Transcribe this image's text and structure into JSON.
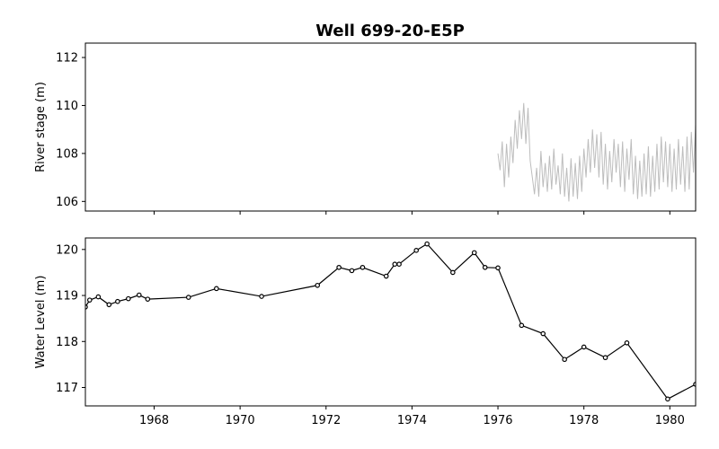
{
  "title": "Well 699-20-E5P",
  "chart_data": [
    {
      "type": "line",
      "panel": "top",
      "ylabel": "River stage (m)",
      "xlabel": "",
      "xlim": [
        1966.4,
        1980.6
      ],
      "ylim": [
        105.6,
        112.6
      ],
      "yticks": [
        106,
        108,
        110,
        112
      ],
      "xticks": [
        1968,
        1970,
        1972,
        1974,
        1976,
        1978,
        1980
      ],
      "show_xtick_labels": false,
      "color": "#bdbdbd",
      "series": [
        {
          "x_range": [
            1976.0,
            1980.6
          ],
          "description_points": [
            [
              1976.0,
              108.0
            ],
            [
              1976.05,
              107.3
            ],
            [
              1976.1,
              108.5
            ],
            [
              1976.15,
              106.6
            ],
            [
              1976.2,
              108.4
            ],
            [
              1976.25,
              107.0
            ],
            [
              1976.3,
              108.7
            ],
            [
              1976.35,
              107.6
            ],
            [
              1976.4,
              109.4
            ],
            [
              1976.45,
              108.2
            ],
            [
              1976.5,
              109.8
            ],
            [
              1976.55,
              108.6
            ],
            [
              1976.6,
              110.1
            ],
            [
              1976.65,
              108.4
            ],
            [
              1976.7,
              109.9
            ],
            [
              1976.75,
              107.7
            ],
            [
              1976.8,
              107.0
            ],
            [
              1976.85,
              106.3
            ],
            [
              1976.9,
              107.4
            ],
            [
              1976.95,
              106.2
            ],
            [
              1977.0,
              108.1
            ],
            [
              1977.05,
              106.6
            ],
            [
              1977.1,
              107.6
            ],
            [
              1977.15,
              106.4
            ],
            [
              1977.2,
              107.9
            ],
            [
              1977.25,
              106.5
            ],
            [
              1977.3,
              108.2
            ],
            [
              1977.35,
              106.7
            ],
            [
              1977.4,
              107.5
            ],
            [
              1977.45,
              106.3
            ],
            [
              1977.5,
              108.0
            ],
            [
              1977.55,
              106.2
            ],
            [
              1977.6,
              107.4
            ],
            [
              1977.65,
              106.0
            ],
            [
              1977.7,
              107.8
            ],
            [
              1977.75,
              106.2
            ],
            [
              1977.8,
              107.6
            ],
            [
              1977.85,
              106.1
            ],
            [
              1977.9,
              107.9
            ],
            [
              1977.95,
              106.4
            ],
            [
              1978.0,
              108.2
            ],
            [
              1978.05,
              107.0
            ],
            [
              1978.1,
              108.6
            ],
            [
              1978.15,
              107.2
            ],
            [
              1978.2,
              109.0
            ],
            [
              1978.25,
              107.4
            ],
            [
              1978.3,
              108.8
            ],
            [
              1978.35,
              107.0
            ],
            [
              1978.4,
              108.9
            ],
            [
              1978.45,
              106.7
            ],
            [
              1978.5,
              108.4
            ],
            [
              1978.55,
              106.5
            ],
            [
              1978.6,
              108.1
            ],
            [
              1978.65,
              106.8
            ],
            [
              1978.7,
              108.6
            ],
            [
              1978.75,
              107.2
            ],
            [
              1978.8,
              108.4
            ],
            [
              1978.85,
              106.6
            ],
            [
              1978.9,
              108.5
            ],
            [
              1978.95,
              106.4
            ],
            [
              1979.0,
              108.2
            ],
            [
              1979.05,
              106.9
            ],
            [
              1979.1,
              108.6
            ],
            [
              1979.15,
              106.3
            ],
            [
              1979.2,
              107.9
            ],
            [
              1979.25,
              106.1
            ],
            [
              1979.3,
              107.7
            ],
            [
              1979.35,
              106.2
            ],
            [
              1979.4,
              108.0
            ],
            [
              1979.45,
              106.3
            ],
            [
              1979.5,
              108.3
            ],
            [
              1979.55,
              106.2
            ],
            [
              1979.6,
              107.9
            ],
            [
              1979.65,
              106.4
            ],
            [
              1979.7,
              108.4
            ],
            [
              1979.75,
              106.5
            ],
            [
              1979.8,
              108.7
            ],
            [
              1979.85,
              106.8
            ],
            [
              1979.9,
              108.5
            ],
            [
              1979.95,
              106.6
            ],
            [
              1980.0,
              108.4
            ],
            [
              1980.05,
              106.4
            ],
            [
              1980.1,
              108.2
            ],
            [
              1980.15,
              106.5
            ],
            [
              1980.2,
              108.6
            ],
            [
              1980.25,
              106.7
            ],
            [
              1980.3,
              108.3
            ],
            [
              1980.35,
              106.4
            ],
            [
              1980.4,
              108.7
            ],
            [
              1980.45,
              106.5
            ],
            [
              1980.5,
              108.9
            ],
            [
              1980.55,
              107.2
            ],
            [
              1980.6,
              109.2
            ]
          ]
        }
      ]
    },
    {
      "type": "line",
      "panel": "bottom",
      "ylabel": "Water Level (m)",
      "xlabel": "",
      "xlim": [
        1966.4,
        1980.6
      ],
      "ylim": [
        116.6,
        120.25
      ],
      "yticks": [
        117,
        118,
        119,
        120
      ],
      "xticks": [
        1968,
        1970,
        1972,
        1974,
        1976,
        1978,
        1980
      ],
      "show_xtick_labels": true,
      "markers": true,
      "series": [
        {
          "x": [
            1966.4,
            1966.5,
            1966.7,
            1966.95,
            1967.15,
            1967.4,
            1967.65,
            1967.85,
            1968.8,
            1969.45,
            1970.5,
            1971.8,
            1972.3,
            1972.6,
            1972.85,
            1973.4,
            1973.6,
            1973.7,
            1974.1,
            1974.35,
            1974.95,
            1975.45,
            1975.7,
            1976.0,
            1976.55,
            1977.05,
            1977.55,
            1978.0,
            1978.5,
            1979.0,
            1979.95,
            1980.6
          ],
          "y": [
            118.75,
            118.9,
            118.97,
            118.8,
            118.87,
            118.93,
            119.01,
            118.92,
            118.96,
            119.15,
            118.98,
            119.22,
            119.61,
            119.54,
            119.61,
            119.42,
            119.68,
            119.68,
            119.98,
            120.12,
            119.5,
            119.93,
            119.61,
            119.6,
            118.35,
            118.17,
            117.61,
            117.88,
            117.65,
            117.97,
            116.75,
            117.07
          ]
        }
      ]
    }
  ]
}
